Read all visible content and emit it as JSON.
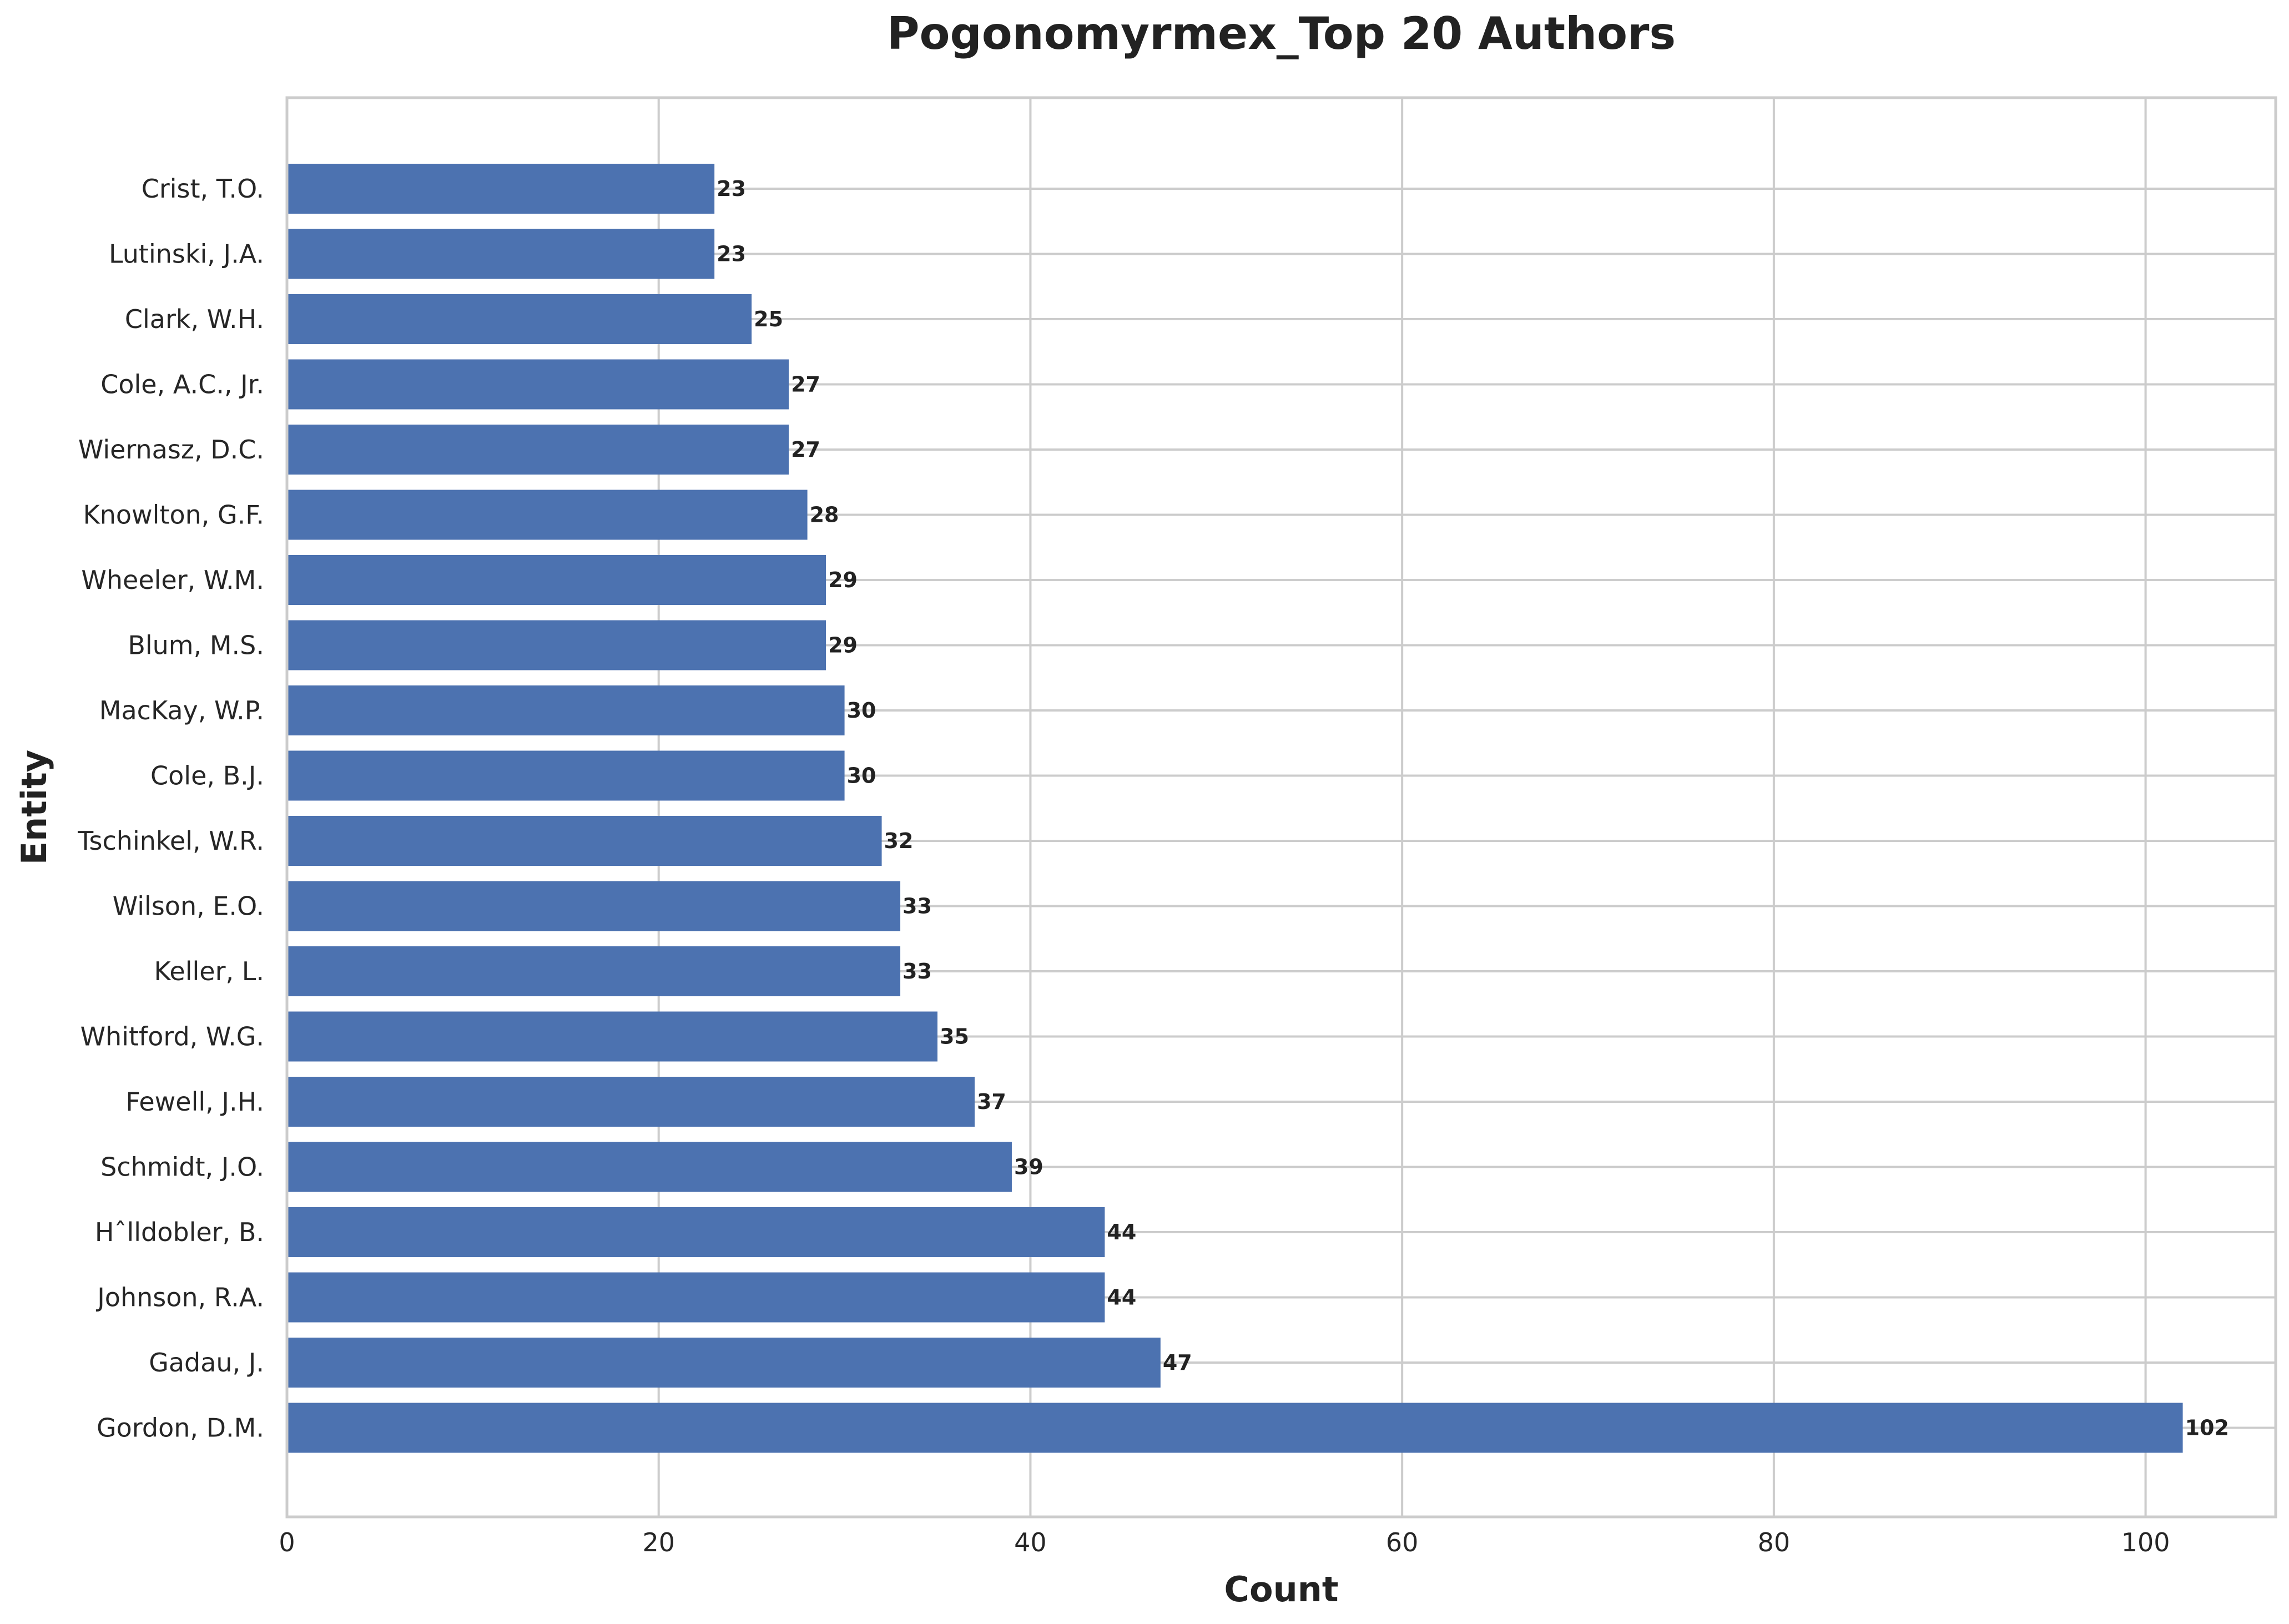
{
  "chart_data": {
    "type": "bar",
    "orientation": "horizontal",
    "title": "Pogonomyrmex_Top 20 Authors",
    "xlabel": "Count",
    "ylabel": "Entity",
    "xlim": [
      0,
      107
    ],
    "xticks": [
      0,
      20,
      40,
      60,
      80,
      100
    ],
    "grid": true,
    "bar_color": "#4c72b0",
    "categories": [
      "Crist, T.O.",
      "Lutinski, J.A.",
      "Clark, W.H.",
      "Cole, A.C., Jr.",
      "Wiernasz, D.C.",
      "Knowlton, G.F.",
      "Wheeler, W.M.",
      "Blum, M.S.",
      "MacKay, W.P.",
      "Cole, B.J.",
      "Tschinkel, W.R.",
      "Wilson, E.O.",
      "Keller, L.",
      "Whitford, W.G.",
      "Fewell, J.H.",
      "Schmidt, J.O.",
      "Hˆlldobler, B.",
      "Johnson, R.A.",
      "Gadau, J.",
      "Gordon, D.M."
    ],
    "values": [
      23,
      23,
      25,
      27,
      27,
      28,
      29,
      29,
      30,
      30,
      32,
      33,
      33,
      35,
      37,
      39,
      44,
      44,
      47,
      102
    ]
  }
}
